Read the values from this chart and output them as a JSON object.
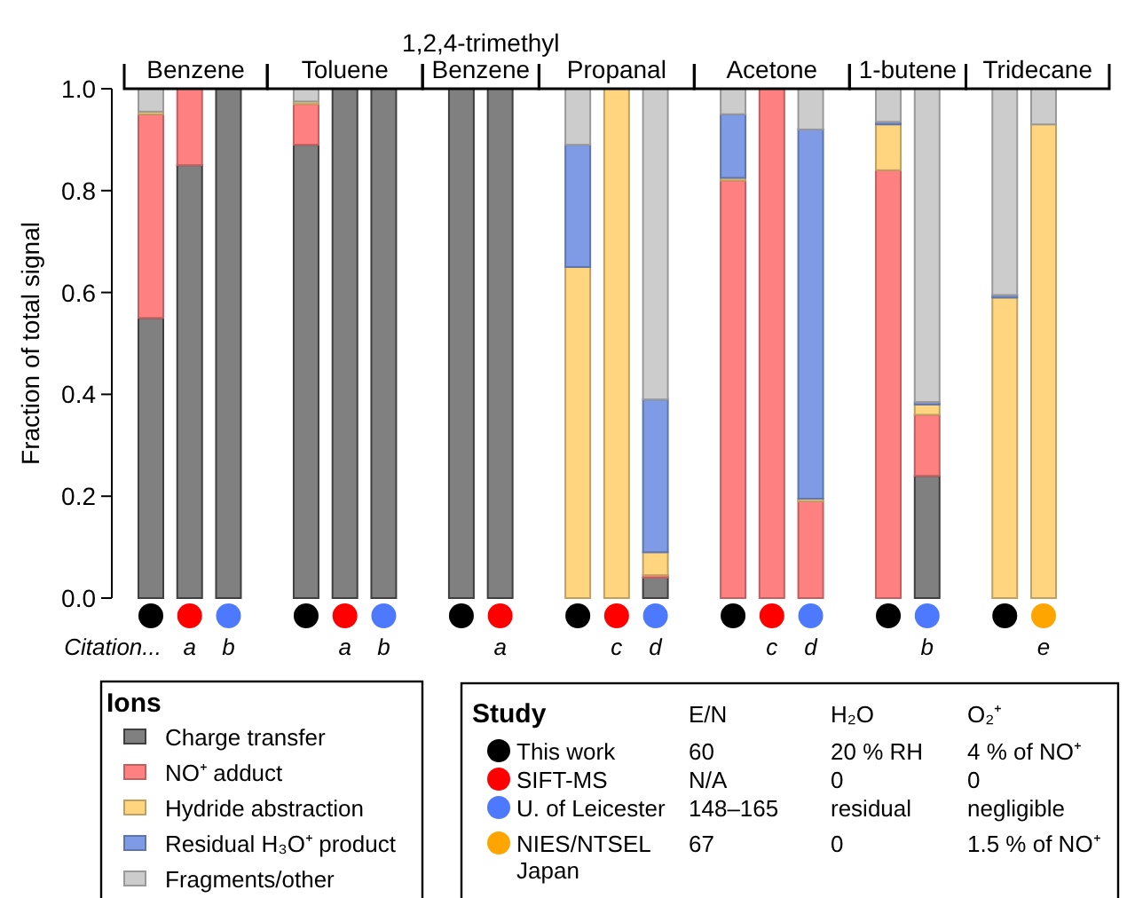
{
  "chart_data": [
    {
      "type": "bar",
      "stacked": true,
      "ylabel": "Fraction of total signal",
      "ylim": [
        0,
        1
      ],
      "yticks": [
        {
          "value": 0,
          "label": "0.0"
        },
        {
          "value": 0.2,
          "label": "0.2"
        },
        {
          "value": 0.4,
          "label": "0.4"
        },
        {
          "value": 0.6,
          "label": "0.6"
        },
        {
          "value": 0.8,
          "label": "0.8"
        },
        {
          "value": 1,
          "label": "1.0"
        }
      ],
      "categories": [
        "Citation...",
        "a",
        "b",
        null,
        null,
        "a",
        "b",
        null,
        null,
        "a",
        null,
        null,
        "c",
        "d",
        null,
        null,
        "c",
        "d",
        null,
        null,
        "b",
        null,
        null,
        "e"
      ],
      "annotations": [
        "Benzene",
        "Toluene",
        "1,2,4-trimethyl Benzene",
        "Propanal",
        "Acetone",
        "1-butene",
        "Tridecane"
      ],
      "legend": "bottom left",
      "legend_title": "Ions",
      "series": [
        {
          "name": "Charge transfer",
          "color": "#808080",
          "values": [
            0.55,
            0.85,
            1,
            null,
            0.89,
            1,
            1,
            null,
            1,
            1,
            null,
            0,
            0,
            0.04,
            null,
            0,
            0,
            0,
            null,
            0,
            0.24,
            null,
            0,
            0
          ]
        },
        {
          "name": "NO⁺ adduct",
          "color": "#ff8080",
          "values": [
            0.4,
            0.15,
            0,
            null,
            0.08,
            0,
            0,
            null,
            0,
            0,
            null,
            0,
            0,
            0.005,
            null,
            0.82,
            1,
            0.19,
            null,
            0.84,
            0.12,
            null,
            0,
            0
          ]
        },
        {
          "name": "Hydride abstraction",
          "color": "#ffd580",
          "values": [
            0.005,
            0,
            0,
            null,
            0.005,
            0,
            0,
            null,
            0,
            0,
            null,
            0.65,
            1,
            0.045,
            null,
            0.005,
            0,
            0.005,
            null,
            0.09,
            0.02,
            null,
            0.59,
            0.93
          ]
        },
        {
          "name": "Residual H₃O⁺ product",
          "color": "#7f9be6",
          "values": [
            0,
            0,
            0,
            null,
            0,
            0,
            0,
            null,
            0,
            0,
            null,
            0.24,
            0,
            0.3,
            null,
            0.125,
            0,
            0.725,
            null,
            0.005,
            0.005,
            null,
            0.005,
            0
          ]
        },
        {
          "name": "Fragments/other",
          "color": "#cccccc",
          "values": [
            0.045,
            0,
            0,
            null,
            0.025,
            0,
            0,
            null,
            0,
            0,
            null,
            0.11,
            0,
            0.61,
            null,
            0.05,
            0,
            0.08,
            null,
            0.065,
            0.615,
            null,
            0.405,
            0.07
          ]
        }
      ]
    },
    {
      "type": "other",
      "title": "Study",
      "categories": [
        "This work",
        "SIFT-MS",
        "U. of Leicester",
        "NIES/NTSEL Japan"
      ],
      "colors": [
        "#000000",
        "#ff0000",
        "#4d79ff",
        "#ffa500"
      ],
      "annotations": [
        "E/N",
        "H₂O",
        "O₂⁺",
        "60",
        "20 % RH",
        "4 % of NO⁺",
        "N/A",
        "0",
        "0",
        "148–165",
        "residual",
        "negligible",
        "67",
        "0",
        "1.5 % of NO⁺"
      ]
    }
  ]
}
